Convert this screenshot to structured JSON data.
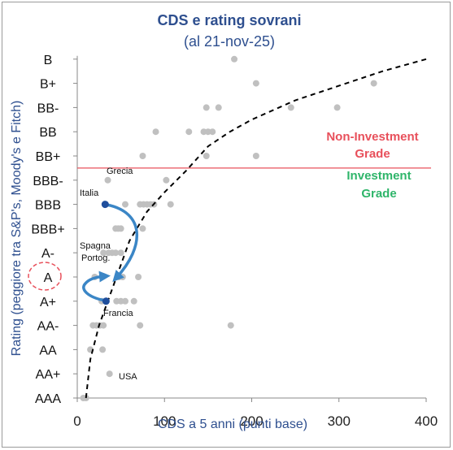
{
  "chart_data": {
    "type": "scatter",
    "title": "CDS e rating sovrani",
    "subtitle": "(al 21-nov-25)",
    "xlabel": "CDS a 5 anni (punti base)",
    "ylabel": "Rating (peggiore tra S&P's, Moody's e Fitch)",
    "xlim": [
      0,
      400
    ],
    "xticks": [
      0,
      100,
      200,
      300,
      400
    ],
    "y_categories": [
      "AAA",
      "AA+",
      "AA",
      "AA-",
      "A+",
      "A",
      "A-",
      "BBB+",
      "BBB",
      "BBB-",
      "BB+",
      "BB",
      "BB-",
      "B+",
      "B"
    ],
    "circled_category": "A",
    "points": [
      {
        "x": 180,
        "y": "B"
      },
      {
        "x": 205,
        "y": "B+"
      },
      {
        "x": 340,
        "y": "B+"
      },
      {
        "x": 148,
        "y": "BB-"
      },
      {
        "x": 162,
        "y": "BB-"
      },
      {
        "x": 245,
        "y": "BB-"
      },
      {
        "x": 298,
        "y": "BB-"
      },
      {
        "x": 90,
        "y": "BB"
      },
      {
        "x": 128,
        "y": "BB"
      },
      {
        "x": 145,
        "y": "BB"
      },
      {
        "x": 150,
        "y": "BB"
      },
      {
        "x": 155,
        "y": "BB"
      },
      {
        "x": 75,
        "y": "BB+"
      },
      {
        "x": 148,
        "y": "BB+"
      },
      {
        "x": 205,
        "y": "BB+"
      },
      {
        "x": 35,
        "y": "BBB-"
      },
      {
        "x": 102,
        "y": "BBB-"
      },
      {
        "x": 55,
        "y": "BBB"
      },
      {
        "x": 72,
        "y": "BBB"
      },
      {
        "x": 76,
        "y": "BBB"
      },
      {
        "x": 80,
        "y": "BBB"
      },
      {
        "x": 84,
        "y": "BBB"
      },
      {
        "x": 88,
        "y": "BBB"
      },
      {
        "x": 107,
        "y": "BBB"
      },
      {
        "x": 44,
        "y": "BBB+"
      },
      {
        "x": 47,
        "y": "BBB+"
      },
      {
        "x": 50,
        "y": "BBB+"
      },
      {
        "x": 75,
        "y": "BBB+"
      },
      {
        "x": 30,
        "y": "A-"
      },
      {
        "x": 36,
        "y": "A-"
      },
      {
        "x": 40,
        "y": "A-"
      },
      {
        "x": 44,
        "y": "A-"
      },
      {
        "x": 50,
        "y": "A-"
      },
      {
        "x": 20,
        "y": "A"
      },
      {
        "x": 48,
        "y": "A"
      },
      {
        "x": 52,
        "y": "A"
      },
      {
        "x": 70,
        "y": "A"
      },
      {
        "x": 28,
        "y": "A+"
      },
      {
        "x": 45,
        "y": "A+"
      },
      {
        "x": 50,
        "y": "A+"
      },
      {
        "x": 55,
        "y": "A+"
      },
      {
        "x": 65,
        "y": "A+"
      },
      {
        "x": 18,
        "y": "AA-"
      },
      {
        "x": 22,
        "y": "AA-"
      },
      {
        "x": 26,
        "y": "AA-"
      },
      {
        "x": 30,
        "y": "AA-"
      },
      {
        "x": 72,
        "y": "AA-"
      },
      {
        "x": 176,
        "y": "AA-"
      },
      {
        "x": 15,
        "y": "AA"
      },
      {
        "x": 29,
        "y": "AA"
      },
      {
        "x": 37,
        "y": "AA+"
      },
      {
        "x": 7,
        "y": "AAA"
      },
      {
        "x": 10,
        "y": "AAA"
      }
    ],
    "highlighted": [
      {
        "label": "Italia",
        "x": 32,
        "y": "BBB",
        "color": "#1f4e9c"
      },
      {
        "label": "Francia",
        "x": 33,
        "y": "A+",
        "color": "#1f4e9c"
      }
    ],
    "annotations": [
      {
        "text": "Grecia",
        "x": 35,
        "y": "BBB-"
      },
      {
        "text": "Spagna",
        "x": 12,
        "y": "A-"
      },
      {
        "text": "Portog.",
        "x": 12,
        "y": "A-"
      },
      {
        "text": "USA",
        "x": 37,
        "y": "AA+"
      }
    ],
    "threshold": {
      "y_between": [
        "BBB-",
        "BB+"
      ],
      "color": "#e8505b",
      "above_label": [
        "Non-Investment",
        "Grade"
      ],
      "below_label": [
        "Investment",
        "Grade"
      ]
    },
    "trend": {
      "style": "dashed",
      "color": "#000000",
      "x": [
        10,
        15,
        25,
        40,
        60,
        80,
        100,
        125,
        150,
        175,
        200,
        250,
        300,
        350,
        400
      ],
      "y_rating_index": [
        0,
        1.6,
        3.0,
        4.5,
        6.5,
        7.7,
        8.5,
        9.4,
        10.4,
        11.0,
        11.5,
        12.3,
        12.9,
        13.5,
        14.0
      ]
    },
    "colors": {
      "points": "#c0c0c0",
      "highlight": "#1f4e9c",
      "arrows": "#3b86c6"
    },
    "grid": false
  }
}
